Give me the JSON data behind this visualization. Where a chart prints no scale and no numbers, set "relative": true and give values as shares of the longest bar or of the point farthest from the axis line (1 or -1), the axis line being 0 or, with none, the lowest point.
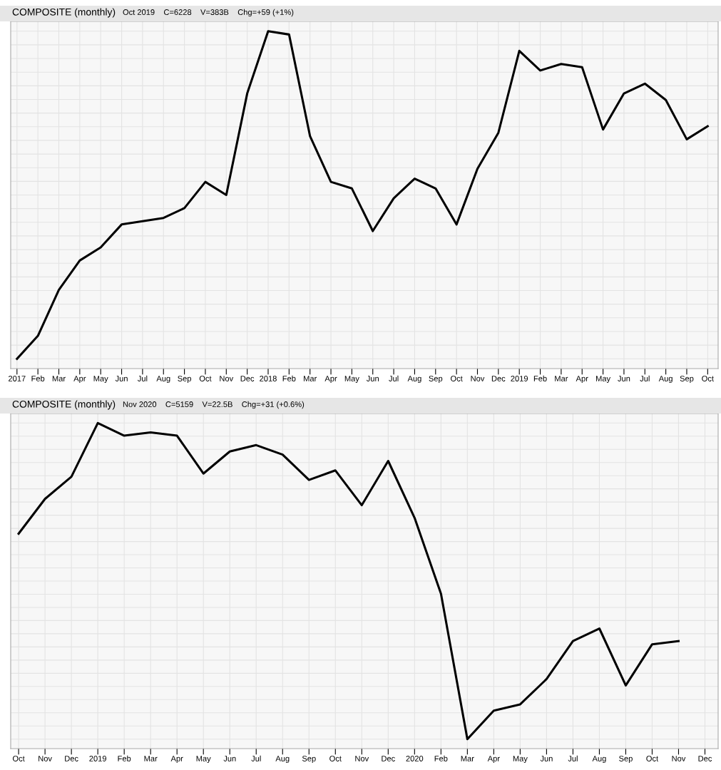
{
  "chart_data": [
    {
      "type": "line",
      "title": "COMPOSITE (monthly)",
      "subtitle": "Oct 2019    C=6228    V=383B    Chg=+59 (+1%)",
      "relative": true,
      "grid": true,
      "tick_labels": "x",
      "legend": false,
      "marker": "none",
      "line_style": "solid",
      "categories": [
        "2017",
        "Feb",
        "Mar",
        "Apr",
        "May",
        "Jun",
        "Jul",
        "Aug",
        "Sep",
        "Oct",
        "Nov",
        "Dec",
        "2018",
        "Feb",
        "Mar",
        "Apr",
        "May",
        "Jun",
        "Jul",
        "Aug",
        "Sep",
        "Oct",
        "Nov",
        "Dec",
        "2019",
        "Feb",
        "Mar",
        "Apr",
        "May",
        "Jun",
        "Jul",
        "Aug",
        "Sep",
        "Oct"
      ],
      "series": [
        {
          "color": "#000000",
          "values": [
            0,
            0.07,
            0.21,
            0.3,
            0.34,
            0.41,
            0.42,
            0.43,
            0.46,
            0.54,
            0.5,
            0.81,
            1,
            0.99,
            0.68,
            0.54,
            0.52,
            0.39,
            0.49,
            0.55,
            0.52,
            0.41,
            0.58,
            0.69,
            0.94,
            0.88,
            0.9,
            0.89,
            0.7,
            0.81,
            0.84,
            0.79,
            0.67,
            0.71
          ]
        }
      ]
    },
    {
      "type": "line",
      "title": "COMPOSITE (monthly)",
      "subtitle": "Nov 2020    C=5159    V=22.5B    Chg=+31 (+0.6%)",
      "relative": true,
      "grid": true,
      "tick_labels": "x",
      "legend": false,
      "marker": "none",
      "line_style": "solid",
      "categories": [
        "Oct",
        "Nov",
        "Dec",
        "2019",
        "Feb",
        "Mar",
        "Apr",
        "May",
        "Jun",
        "Jul",
        "Aug",
        "Sep",
        "Oct",
        "Nov",
        "Dec",
        "2020",
        "Feb",
        "Mar",
        "Apr",
        "May",
        "Jun",
        "Jul",
        "Aug",
        "Sep",
        "Oct",
        "Nov",
        "Dec"
      ],
      "series": [
        {
          "color": "#000000",
          "values": [
            0.65,
            0.76,
            0.83,
            1,
            0.96,
            0.97,
            0.96,
            0.84,
            0.91,
            0.93,
            0.9,
            0.82,
            0.85,
            0.74,
            0.88,
            0.7,
            0.46,
            0,
            0.09,
            0.11,
            0.19,
            0.31,
            0.35,
            0.17,
            0.3,
            0.31,
            null
          ]
        }
      ]
    }
  ]
}
